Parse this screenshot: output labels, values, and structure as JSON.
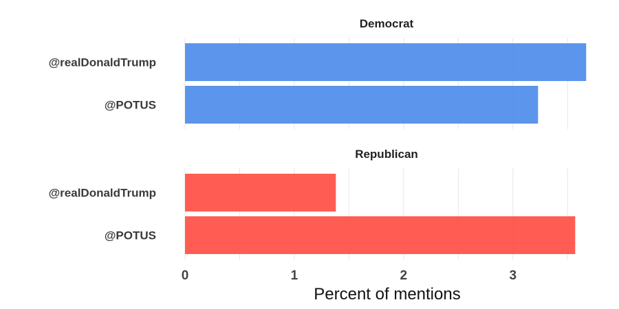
{
  "chart_data": {
    "type": "bar",
    "orientation": "horizontal",
    "xlabel": "Percent of mentions",
    "xlim": [
      0,
      3.7
    ],
    "xticks": [
      0,
      1,
      2,
      3
    ],
    "grid": true,
    "panels": [
      {
        "title": "Democrat",
        "color": "#4a89ea",
        "categories": [
          "@realDonaldTrump",
          "@POTUS"
        ],
        "values": [
          3.67,
          3.23
        ]
      },
      {
        "title": "Republican",
        "color": "#ff4b40",
        "categories": [
          "@realDonaldTrump",
          "@POTUS"
        ],
        "values": [
          1.38,
          3.57
        ]
      }
    ]
  }
}
